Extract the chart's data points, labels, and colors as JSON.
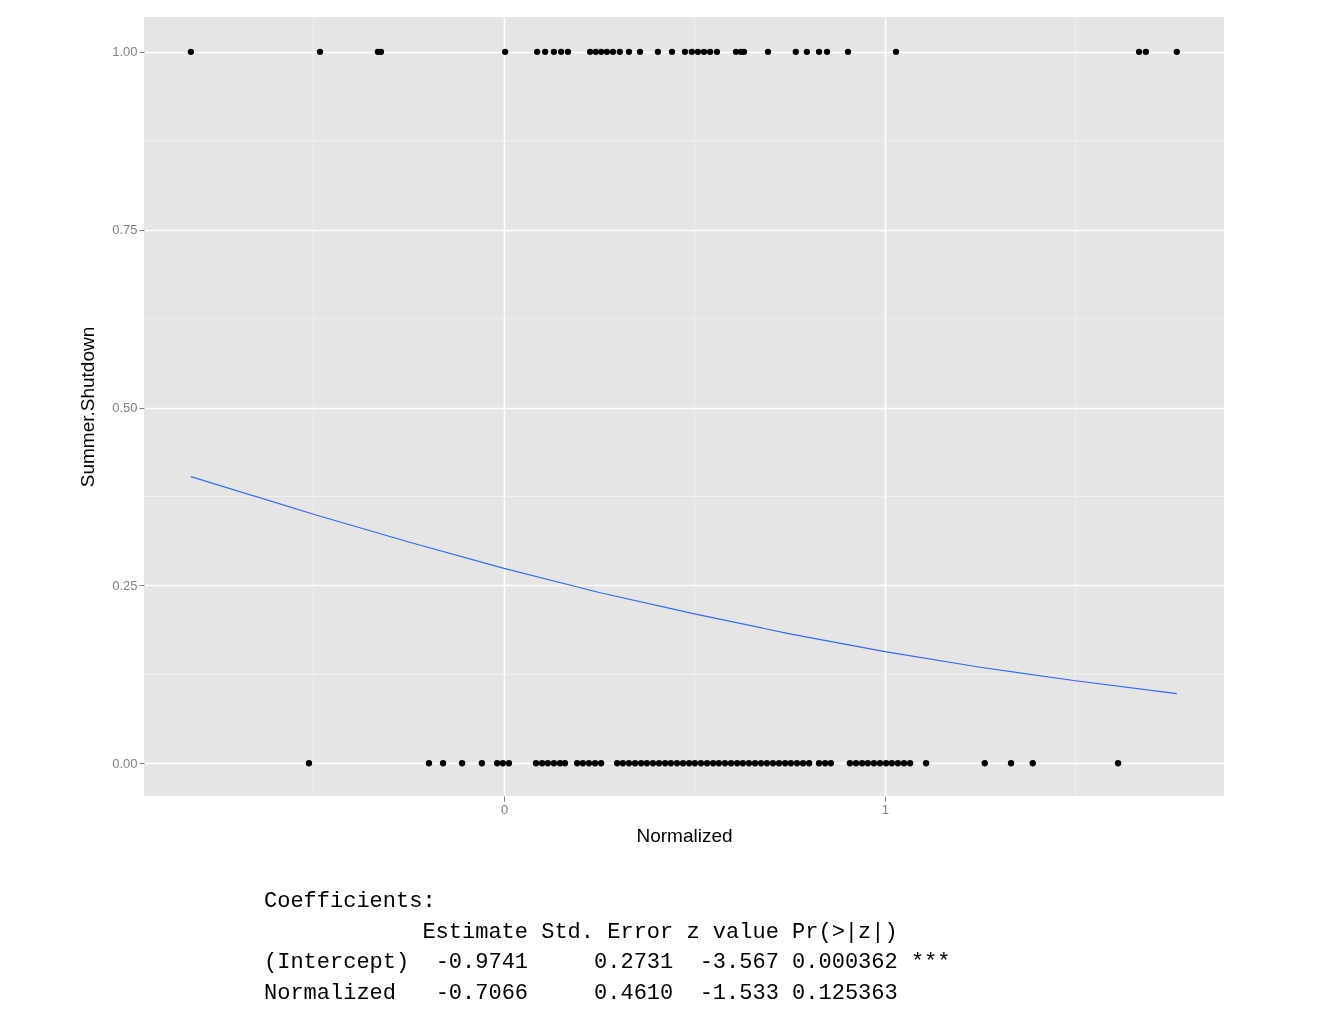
{
  "chart_data": {
    "type": "scatter",
    "xlabel": "Normalized",
    "ylabel": "Summer.Shutdown",
    "xlim": [
      -0.945,
      1.89
    ],
    "ylim": [
      -0.046,
      1.049
    ],
    "xticks": [
      0,
      1
    ],
    "yticks": [
      {
        "value": 0,
        "label": "0.00"
      },
      {
        "value": 0.25,
        "label": "0.25"
      },
      {
        "value": 0.5,
        "label": "0.50"
      },
      {
        "value": 0.75,
        "label": "0.75"
      },
      {
        "value": 1,
        "label": "1.00"
      }
    ],
    "grid": true,
    "marker": "circle",
    "series": [
      {
        "color": "#000000",
        "x": [
          -0.822,
          -0.483,
          -0.331,
          -0.323,
          0.003,
          0.087,
          0.108,
          0.131,
          0.15,
          0.168,
          0.226,
          0.241,
          0.255,
          0.27,
          0.286,
          0.304,
          0.328,
          0.357,
          0.404,
          0.441,
          0.475,
          0.493,
          0.509,
          0.525,
          0.541,
          0.559,
          0.609,
          0.622,
          0.63,
          0.693,
          0.766,
          0.795,
          0.827,
          0.848,
          0.903,
          1.029,
          1.667,
          1.685,
          1.766
        ],
        "values": [
          1,
          1,
          1,
          1,
          1,
          1,
          1,
          1,
          1,
          1,
          1,
          1,
          1,
          1,
          1,
          1,
          1,
          1,
          1,
          1,
          1,
          1,
          1,
          1,
          1,
          1,
          1,
          1,
          1,
          1,
          1,
          1,
          1,
          1,
          1,
          1,
          1,
          1,
          1
        ]
      },
      {
        "color": "#000000",
        "x": [
          -0.512,
          -0.197,
          -0.16,
          -0.11,
          -0.058,
          -0.018,
          -0.003,
          0.013,
          0.084,
          0.1,
          0.115,
          0.131,
          0.147,
          0.16,
          0.192,
          0.207,
          0.223,
          0.239,
          0.255,
          0.297,
          0.312,
          0.328,
          0.344,
          0.36,
          0.375,
          0.391,
          0.407,
          0.423,
          0.438,
          0.454,
          0.47,
          0.486,
          0.501,
          0.517,
          0.533,
          0.549,
          0.564,
          0.58,
          0.596,
          0.612,
          0.627,
          0.643,
          0.659,
          0.675,
          0.69,
          0.706,
          0.722,
          0.738,
          0.753,
          0.769,
          0.785,
          0.801,
          0.827,
          0.843,
          0.858,
          0.908,
          0.924,
          0.94,
          0.955,
          0.971,
          0.987,
          1.003,
          1.018,
          1.034,
          1.05,
          1.066,
          1.108,
          1.262,
          1.331,
          1.388,
          1.612
        ],
        "values": [
          0,
          0,
          0,
          0,
          0,
          0,
          0,
          0,
          0,
          0,
          0,
          0,
          0,
          0,
          0,
          0,
          0,
          0,
          0,
          0,
          0,
          0,
          0,
          0,
          0,
          0,
          0,
          0,
          0,
          0,
          0,
          0,
          0,
          0,
          0,
          0,
          0,
          0,
          0,
          0,
          0,
          0,
          0,
          0,
          0,
          0,
          0,
          0,
          0,
          0,
          0,
          0,
          0,
          0,
          0,
          0,
          0,
          0,
          0,
          0,
          0,
          0,
          0,
          0,
          0,
          0,
          0,
          0,
          0,
          0,
          0
        ]
      },
      {
        "type": "line",
        "color": "#3366ff",
        "marker": "none",
        "line_style": "solid",
        "x": [
          -0.822,
          -0.5,
          -0.25,
          0,
          0.25,
          0.5,
          0.75,
          1,
          1.25,
          1.5,
          1.766
        ],
        "values": [
          0.403,
          0.35,
          0.311,
          0.274,
          0.24,
          0.21,
          0.182,
          0.157,
          0.135,
          0.116,
          0.098
        ]
      }
    ],
    "annotations": [
      "Coefficients:",
      "            Estimate Std. Error z value Pr(>|z|)    ",
      "(Intercept)  -0.9741     0.2731  -3.567 0.000362 ***",
      "Normalized   -0.7066     0.4610  -1.533 0.125363    "
    ]
  }
}
